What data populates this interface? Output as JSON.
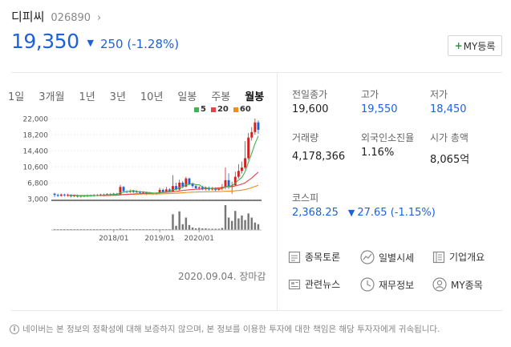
{
  "stock": {
    "name": "디피씨",
    "code": "026890",
    "price": "19,350",
    "change": "250 (-1.28%)",
    "my_button": "MY등록"
  },
  "tabs": [
    "1일",
    "3개월",
    "1년",
    "3년",
    "10년",
    "일봉",
    "주봉",
    "월봉"
  ],
  "active_tab": "월봉",
  "legend": [
    {
      "label": "5",
      "color": "#3fb34f"
    },
    {
      "label": "20",
      "color": "#e8414a"
    },
    {
      "label": "60",
      "color": "#f08c1e"
    }
  ],
  "chart_data": {
    "type": "candlestick",
    "y_ticks": [
      "22,000",
      "18,200",
      "14,400",
      "10,600",
      "6,800",
      "3,000"
    ],
    "x_ticks": [
      "2018/01",
      "2019/01",
      "2020/01"
    ],
    "ylim": [
      3000,
      22000
    ],
    "date_label": "2020.09.04. 장마감",
    "candles": [
      [
        4200,
        3900,
        3400,
        4400
      ],
      [
        3900,
        3700,
        3400,
        4200
      ],
      [
        3700,
        4000,
        3500,
        4200
      ],
      [
        4000,
        3800,
        3500,
        4200
      ],
      [
        3800,
        3900,
        3500,
        4200
      ],
      [
        3900,
        3600,
        3300,
        4100
      ],
      [
        3600,
        3800,
        3400,
        4000
      ],
      [
        3800,
        3500,
        3300,
        4000
      ],
      [
        3500,
        3700,
        3300,
        3900
      ],
      [
        3700,
        3600,
        3400,
        3900
      ],
      [
        3600,
        3800,
        3400,
        4000
      ],
      [
        3800,
        3700,
        3500,
        4000
      ],
      [
        3700,
        3900,
        3500,
        4100
      ],
      [
        3900,
        3800,
        3600,
        4100
      ],
      [
        3800,
        4000,
        3600,
        4200
      ],
      [
        4000,
        3900,
        3600,
        4200
      ],
      [
        3900,
        4100,
        3700,
        4300
      ],
      [
        4100,
        4000,
        3700,
        4300
      ],
      [
        4000,
        4200,
        3800,
        4400
      ],
      [
        4200,
        4000,
        3800,
        4400
      ],
      [
        4000,
        5800,
        3900,
        6300
      ],
      [
        5800,
        4800,
        4500,
        6000
      ],
      [
        4800,
        4600,
        4300,
        5000
      ],
      [
        4600,
        4900,
        4400,
        5200
      ],
      [
        4900,
        4600,
        4400,
        5100
      ],
      [
        4600,
        4700,
        4400,
        5000
      ],
      [
        4700,
        4400,
        4200,
        4900
      ],
      [
        4400,
        4600,
        4200,
        4800
      ],
      [
        4600,
        4200,
        3900,
        4700
      ],
      [
        4200,
        4400,
        4000,
        4600
      ],
      [
        4400,
        4100,
        3900,
        4500
      ],
      [
        4100,
        4300,
        3900,
        4500
      ],
      [
        4300,
        5100,
        4100,
        5600
      ],
      [
        5100,
        4600,
        4400,
        5400
      ],
      [
        4600,
        5200,
        4400,
        5800
      ],
      [
        5200,
        4800,
        4600,
        5500
      ],
      [
        4800,
        6000,
        4600,
        8600
      ],
      [
        6000,
        5200,
        5000,
        6800
      ],
      [
        5200,
        6800,
        5000,
        7500
      ],
      [
        6800,
        5900,
        5500,
        7200
      ],
      [
        5900,
        7800,
        5700,
        8200
      ],
      [
        7800,
        6500,
        6200,
        8000
      ],
      [
        6500,
        6000,
        5600,
        6800
      ],
      [
        6000,
        5500,
        5200,
        6300
      ],
      [
        5500,
        5700,
        5100,
        6000
      ],
      [
        5700,
        5300,
        5000,
        6100
      ],
      [
        5300,
        5600,
        5000,
        5900
      ],
      [
        5600,
        5200,
        4900,
        5900
      ],
      [
        5200,
        5500,
        5000,
        5800
      ],
      [
        5500,
        5100,
        4800,
        5700
      ],
      [
        5100,
        5400,
        4900,
        5700
      ],
      [
        5400,
        5800,
        5000,
        6500
      ],
      [
        5800,
        7400,
        5200,
        10400
      ],
      [
        7400,
        5800,
        5300,
        9000
      ],
      [
        5800,
        6200,
        4200,
        7000
      ],
      [
        6200,
        8200,
        6000,
        9400
      ],
      [
        8200,
        9600,
        7800,
        11200
      ],
      [
        9600,
        10400,
        9000,
        11800
      ],
      [
        10400,
        12600,
        10000,
        16600
      ],
      [
        12600,
        17500,
        12200,
        18600
      ],
      [
        17500,
        18800,
        16800,
        20000
      ],
      [
        18800,
        21100,
        18200,
        22000
      ],
      [
        21100,
        19350,
        18400,
        21600
      ]
    ],
    "volume": [
      2,
      2,
      2,
      2,
      2,
      2,
      2,
      2,
      2,
      2,
      2,
      2,
      2,
      2,
      2,
      2,
      2,
      2,
      2,
      2,
      3,
      2,
      2,
      2,
      2,
      2,
      2,
      2,
      2,
      2,
      2,
      2,
      2,
      2,
      2,
      2,
      38,
      10,
      45,
      14,
      30,
      12,
      6,
      4,
      5,
      4,
      4,
      3,
      3,
      3,
      3,
      5,
      60,
      30,
      22,
      46,
      28,
      35,
      24,
      40,
      30,
      18,
      14
    ]
  },
  "info": {
    "prev_close_label": "전일종가",
    "prev_close": "19,600",
    "high_label": "고가",
    "high": "19,550",
    "low_label": "저가",
    "low": "18,450",
    "volume_label": "거래량",
    "volume": "4,178,366",
    "foreign_label": "외국인소진율",
    "foreign": "1.16%",
    "mcap_label": "시가 총액",
    "mcap": "8,065억"
  },
  "kospi": {
    "label": "코스피",
    "value": "2,368.25",
    "change": "27.65 (-1.15%)"
  },
  "links": {
    "discussion": "종목토론",
    "daily": "일별시세",
    "overview": "기업개요",
    "news": "관련뉴스",
    "finance": "재무정보",
    "my": "MY종목"
  },
  "notice": "네이버는 본 정보의 정확성에 대해 보증하지 않으며, 본 정보를 이용한 투자에 대한 책임은 해당 투자자에게 귀속됩니다.",
  "colors": {
    "up": "#d4211f",
    "down": "#1d62d8",
    "ma5": "#3fb34f",
    "ma20": "#e8414a",
    "ma60": "#f08c1e"
  }
}
